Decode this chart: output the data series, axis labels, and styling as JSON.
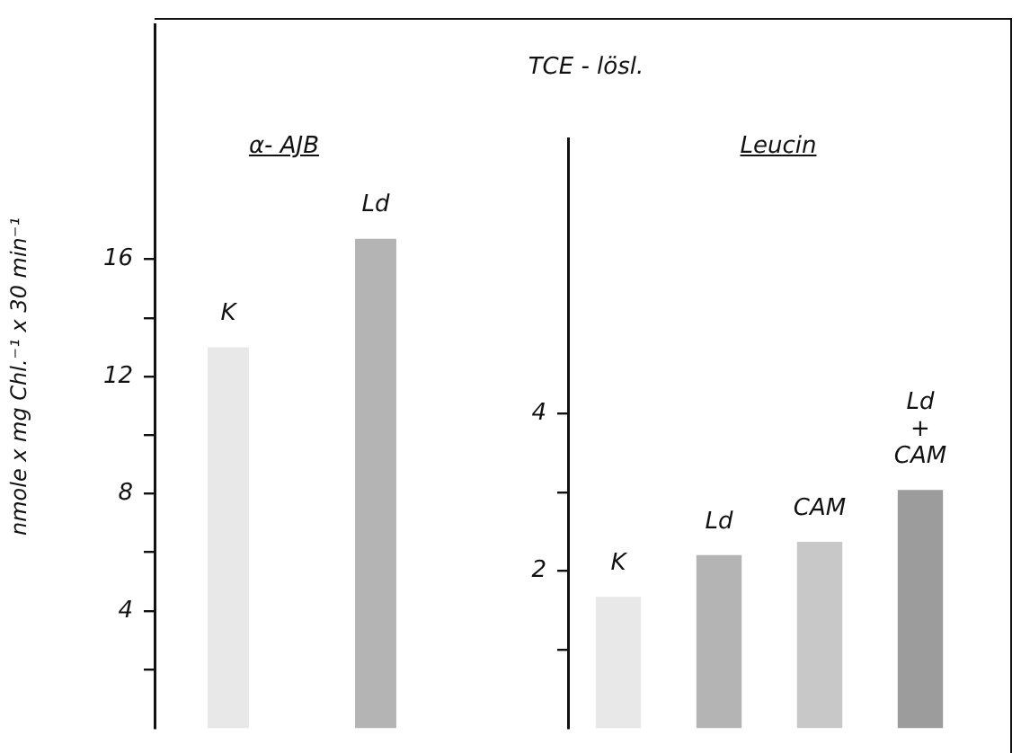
{
  "chart_data": [
    {
      "type": "bar",
      "subtitle": "α- AJB",
      "ylabel": "nmole x mg Chl.⁻¹ x 30 min⁻¹",
      "categories": [
        "K",
        "Ld"
      ],
      "values": [
        13.0,
        16.7
      ],
      "colors": [
        "#e8e8e8",
        "#b4b4b4"
      ],
      "ylim": [
        0,
        24
      ],
      "yticks": [
        {
          "value": 2,
          "label": null
        },
        4,
        {
          "value": 6,
          "label": null
        },
        8,
        {
          "value": 10,
          "label": null
        },
        12,
        {
          "value": 14,
          "label": null
        },
        16
      ],
      "grid": false,
      "legend": false
    },
    {
      "type": "bar",
      "title": "TCE - lösl.",
      "subtitle": "Leucin",
      "categories": [
        "K",
        "Ld",
        "CAM",
        "Ld + CAM"
      ],
      "values": [
        1.67,
        2.2,
        2.37,
        3.03
      ],
      "colors": [
        "#e8e8e8",
        "#b4b4b4",
        "#c8c8c8",
        "#9c9c9c"
      ],
      "ylim": [
        0,
        7.5
      ],
      "yticks": [
        {
          "value": 1,
          "label": null
        },
        2,
        {
          "value": 3,
          "label": null
        },
        4
      ],
      "grid": false,
      "legend": false
    }
  ]
}
